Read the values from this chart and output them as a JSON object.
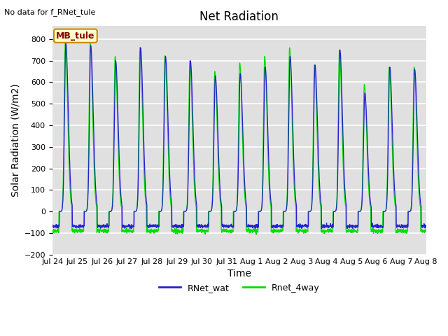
{
  "title": "Net Radiation",
  "xlabel": "Time",
  "ylabel": "Solar Radiation (W/m2)",
  "top_left_text": "No data for f_RNet_tule",
  "legend_box_text": "MB_tule",
  "legend_box_color": "#ffffcc",
  "legend_box_border": "#cc8800",
  "legend_box_text_color": "#880000",
  "ylim": [
    -200,
    860
  ],
  "yticks": [
    -200,
    -100,
    0,
    100,
    200,
    300,
    400,
    500,
    600,
    700,
    800
  ],
  "color_blue": "#2222cc",
  "color_green": "#00dd00",
  "bg_color": "#e0e0e0",
  "legend_entries": [
    "RNet_wat",
    "Rnet_4way"
  ],
  "n_days": 15,
  "points_per_day": 144,
  "xtick_labels": [
    "Jul 24",
    "Jul 25",
    "Jul 26",
    "Jul 27",
    "Jul 28",
    "Jul 29",
    "Jul 30",
    "Jul 31",
    "Aug 1",
    "Aug 2",
    "Aug 3",
    "Aug 4",
    "Aug 5",
    "Aug 6",
    "Aug 7",
    "Aug 8"
  ],
  "day_peaks_blue": [
    780,
    770,
    700,
    760,
    720,
    700,
    630,
    640,
    670,
    720,
    680,
    750,
    550,
    670,
    660
  ],
  "day_peaks_green": [
    790,
    780,
    720,
    762,
    724,
    700,
    650,
    690,
    720,
    760,
    680,
    750,
    590,
    670,
    670
  ],
  "night_base_blue": -68,
  "night_base_green": -90,
  "title_fontsize": 12,
  "axis_fontsize": 10,
  "tick_fontsize": 8
}
